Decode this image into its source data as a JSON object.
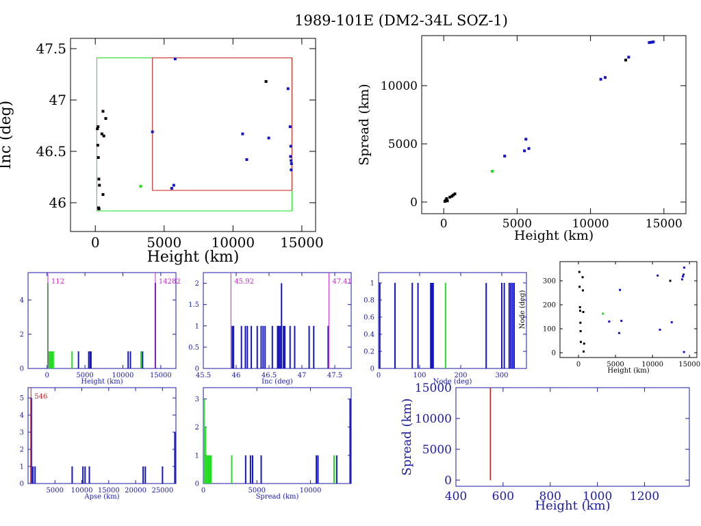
{
  "title": "1989-101E (DM2-34L SOZ-1)",
  "colors": {
    "axis": "#000000",
    "blue_axis": "#1a1aa6",
    "blue": "#1515c8",
    "green": "#22dd22",
    "red": "#c81e1e",
    "magenta": "#cc22cc",
    "black": "#000000"
  },
  "chart_data": [
    {
      "id": "inc-vs-height",
      "type": "scatter",
      "xlabel": "Height (km)",
      "ylabel": "Inc (deg)",
      "xlim": [
        -1800,
        16000
      ],
      "ylim": [
        45.72,
        47.6
      ],
      "xticks": [
        0,
        5000,
        10000,
        15000
      ],
      "yticks": [
        46,
        46.5,
        47,
        47.5
      ],
      "boxes": [
        {
          "color": "green",
          "x0": 112,
          "x1": 14282,
          "y0": 45.92,
          "y1": 47.41
        },
        {
          "color": "red",
          "x0": 4150,
          "x1": 14282,
          "y0": 46.12,
          "y1": 47.41
        }
      ],
      "points": [
        {
          "x": 200,
          "y": 46.74,
          "c": "black"
        },
        {
          "x": 150,
          "y": 46.72,
          "c": "black"
        },
        {
          "x": 180,
          "y": 46.56,
          "c": "black"
        },
        {
          "x": 220,
          "y": 46.44,
          "c": "black"
        },
        {
          "x": 260,
          "y": 46.23,
          "c": "black"
        },
        {
          "x": 300,
          "y": 46.17,
          "c": "black"
        },
        {
          "x": 240,
          "y": 45.95,
          "c": "black"
        },
        {
          "x": 270,
          "y": 45.94,
          "c": "black"
        },
        {
          "x": 560,
          "y": 46.89,
          "c": "black"
        },
        {
          "x": 760,
          "y": 46.82,
          "c": "black"
        },
        {
          "x": 480,
          "y": 46.67,
          "c": "black"
        },
        {
          "x": 620,
          "y": 46.65,
          "c": "black"
        },
        {
          "x": 560,
          "y": 46.08,
          "c": "black"
        },
        {
          "x": 3300,
          "y": 46.16,
          "c": "green"
        },
        {
          "x": 4150,
          "y": 46.69,
          "c": "blue"
        },
        {
          "x": 5550,
          "y": 46.14,
          "c": "blue"
        },
        {
          "x": 5700,
          "y": 46.17,
          "c": "blue"
        },
        {
          "x": 5800,
          "y": 47.4,
          "c": "blue"
        },
        {
          "x": 10700,
          "y": 46.67,
          "c": "blue"
        },
        {
          "x": 11000,
          "y": 46.42,
          "c": "blue"
        },
        {
          "x": 12400,
          "y": 47.18,
          "c": "black"
        },
        {
          "x": 12600,
          "y": 46.63,
          "c": "blue"
        },
        {
          "x": 14000,
          "y": 47.11,
          "c": "blue"
        },
        {
          "x": 14150,
          "y": 46.74,
          "c": "blue"
        },
        {
          "x": 14200,
          "y": 46.55,
          "c": "blue"
        },
        {
          "x": 14180,
          "y": 46.45,
          "c": "blue"
        },
        {
          "x": 14220,
          "y": 46.41,
          "c": "blue"
        },
        {
          "x": 14250,
          "y": 46.38,
          "c": "blue"
        },
        {
          "x": 14230,
          "y": 46.32,
          "c": "blue"
        }
      ]
    },
    {
      "id": "spread-vs-height",
      "type": "scatter",
      "xlabel": "Height (km)",
      "ylabel": "Spread (km)",
      "xlim": [
        -1500,
        16500
      ],
      "ylim": [
        -1000,
        14300
      ],
      "xticks": [
        0,
        5000,
        10000,
        15000
      ],
      "yticks": [
        0,
        5000,
        10000
      ],
      "points": [
        {
          "x": 80,
          "y": 60,
          "c": "black"
        },
        {
          "x": 150,
          "y": 180,
          "c": "black"
        },
        {
          "x": 200,
          "y": 300,
          "c": "black"
        },
        {
          "x": 250,
          "y": 100,
          "c": "black"
        },
        {
          "x": 420,
          "y": 420,
          "c": "black"
        },
        {
          "x": 560,
          "y": 500,
          "c": "black"
        },
        {
          "x": 650,
          "y": 600,
          "c": "black"
        },
        {
          "x": 760,
          "y": 700,
          "c": "black"
        },
        {
          "x": 3300,
          "y": 2650,
          "c": "green"
        },
        {
          "x": 4150,
          "y": 3950,
          "c": "blue"
        },
        {
          "x": 5500,
          "y": 4400,
          "c": "blue"
        },
        {
          "x": 5600,
          "y": 5400,
          "c": "blue"
        },
        {
          "x": 5800,
          "y": 4600,
          "c": "blue"
        },
        {
          "x": 10700,
          "y": 10550,
          "c": "blue"
        },
        {
          "x": 11000,
          "y": 10700,
          "c": "blue"
        },
        {
          "x": 12400,
          "y": 12200,
          "c": "black"
        },
        {
          "x": 12600,
          "y": 12450,
          "c": "blue"
        },
        {
          "x": 14000,
          "y": 13700,
          "c": "blue"
        },
        {
          "x": 14100,
          "y": 13720,
          "c": "blue"
        },
        {
          "x": 14200,
          "y": 13740,
          "c": "blue"
        },
        {
          "x": 14280,
          "y": 13760,
          "c": "blue"
        }
      ]
    },
    {
      "id": "height-hist",
      "type": "bar",
      "xlabel": "Height (km)",
      "xlim": [
        -2500,
        17000
      ],
      "ylim": [
        0,
        5.6
      ],
      "xticks": [
        0,
        5000,
        10000,
        15000
      ],
      "yticks": [
        0,
        2,
        4
      ],
      "markers": [
        {
          "x": 112,
          "label": "112"
        },
        {
          "x": 14282,
          "label": "14282"
        }
      ],
      "bars": [
        {
          "x": 112,
          "v": 5,
          "c": "green"
        },
        {
          "x": 250,
          "v": 1,
          "c": "green"
        },
        {
          "x": 420,
          "v": 1,
          "c": "green"
        },
        {
          "x": 560,
          "v": 1,
          "c": "green"
        },
        {
          "x": 700,
          "v": 1,
          "c": "green"
        },
        {
          "x": 820,
          "v": 1,
          "c": "green"
        },
        {
          "x": 3300,
          "v": 1,
          "c": "green"
        },
        {
          "x": 4150,
          "v": 1,
          "c": "blue"
        },
        {
          "x": 5500,
          "v": 1,
          "c": "blue"
        },
        {
          "x": 5700,
          "v": 1,
          "c": "blue"
        },
        {
          "x": 5800,
          "v": 1,
          "c": "blue"
        },
        {
          "x": 10700,
          "v": 1,
          "c": "blue"
        },
        {
          "x": 11000,
          "v": 1,
          "c": "blue"
        },
        {
          "x": 12400,
          "v": 1,
          "c": "green"
        },
        {
          "x": 12600,
          "v": 1,
          "c": "blue"
        },
        {
          "x": 14282,
          "v": 5,
          "c": "blue"
        }
      ]
    },
    {
      "id": "inc-hist",
      "type": "bar",
      "xlabel": "Inc (deg)",
      "xlim": [
        45.5,
        47.75
      ],
      "ylim": [
        0,
        2.25
      ],
      "xticks": [
        45.5,
        46,
        46.5,
        47,
        47.5
      ],
      "yticks": [
        0,
        0.5,
        1,
        1.5,
        2
      ],
      "markers": [
        {
          "x": 45.92,
          "label": "45.92"
        },
        {
          "x": 47.41,
          "label": "47.41"
        }
      ],
      "bars": [
        {
          "x": 45.94,
          "v": 1,
          "c": "blue"
        },
        {
          "x": 45.96,
          "v": 1,
          "c": "blue"
        },
        {
          "x": 46.08,
          "v": 1,
          "c": "blue"
        },
        {
          "x": 46.14,
          "v": 1,
          "c": "blue"
        },
        {
          "x": 46.17,
          "v": 1,
          "c": "blue"
        },
        {
          "x": 46.23,
          "v": 1,
          "c": "blue"
        },
        {
          "x": 46.32,
          "v": 1,
          "c": "blue"
        },
        {
          "x": 46.38,
          "v": 1,
          "c": "blue"
        },
        {
          "x": 46.41,
          "v": 1,
          "c": "blue"
        },
        {
          "x": 46.44,
          "v": 1,
          "c": "blue"
        },
        {
          "x": 46.55,
          "v": 1,
          "c": "blue"
        },
        {
          "x": 46.63,
          "v": 1,
          "c": "blue"
        },
        {
          "x": 46.65,
          "v": 1,
          "c": "blue"
        },
        {
          "x": 46.67,
          "v": 1,
          "c": "blue"
        },
        {
          "x": 46.69,
          "v": 2,
          "c": "blue"
        },
        {
          "x": 46.72,
          "v": 1,
          "c": "blue"
        },
        {
          "x": 46.74,
          "v": 1,
          "c": "blue"
        },
        {
          "x": 46.82,
          "v": 1,
          "c": "blue"
        },
        {
          "x": 46.89,
          "v": 1,
          "c": "blue"
        },
        {
          "x": 47.11,
          "v": 1,
          "c": "blue"
        },
        {
          "x": 47.18,
          "v": 1,
          "c": "blue"
        },
        {
          "x": 47.4,
          "v": 1,
          "c": "blue"
        }
      ]
    },
    {
      "id": "node-hist",
      "type": "bar",
      "xlabel": "Node (deg)",
      "xlim": [
        0,
        360
      ],
      "ylim": [
        0,
        1.12
      ],
      "xticks": [
        0,
        100,
        200,
        300
      ],
      "yticks": [
        0,
        0.2,
        0.4,
        0.6,
        0.8,
        1
      ],
      "bars": [
        {
          "x": 3,
          "v": 1,
          "c": "blue"
        },
        {
          "x": 40,
          "v": 1,
          "c": "blue"
        },
        {
          "x": 82,
          "v": 1,
          "c": "blue"
        },
        {
          "x": 96,
          "v": 1,
          "c": "blue"
        },
        {
          "x": 127,
          "v": 1,
          "c": "blue"
        },
        {
          "x": 130,
          "v": 1,
          "c": "blue"
        },
        {
          "x": 133,
          "v": 1,
          "c": "blue"
        },
        {
          "x": 163,
          "v": 1,
          "c": "green"
        },
        {
          "x": 262,
          "v": 1,
          "c": "blue"
        },
        {
          "x": 300,
          "v": 1,
          "c": "blue"
        },
        {
          "x": 306,
          "v": 1,
          "c": "blue"
        },
        {
          "x": 318,
          "v": 1,
          "c": "blue"
        },
        {
          "x": 322,
          "v": 1,
          "c": "blue"
        },
        {
          "x": 326,
          "v": 1,
          "c": "blue"
        },
        {
          "x": 330,
          "v": 1,
          "c": "blue"
        }
      ]
    },
    {
      "id": "node-vs-height",
      "type": "scatter",
      "xlabel": "Height (km)",
      "ylabel": "Node (deg)",
      "xlim": [
        -2500,
        16000
      ],
      "ylim": [
        -20,
        380
      ],
      "xticks": [
        0,
        5000,
        10000,
        15000
      ],
      "yticks": [
        0,
        100,
        200,
        300
      ],
      "points": [
        {
          "x": 120,
          "y": 337,
          "c": "black"
        },
        {
          "x": 150,
          "y": 275,
          "c": "black"
        },
        {
          "x": 200,
          "y": 190,
          "c": "black"
        },
        {
          "x": 230,
          "y": 175,
          "c": "black"
        },
        {
          "x": 260,
          "y": 125,
          "c": "black"
        },
        {
          "x": 290,
          "y": 90,
          "c": "black"
        },
        {
          "x": 320,
          "y": 45,
          "c": "black"
        },
        {
          "x": 560,
          "y": 315,
          "c": "black"
        },
        {
          "x": 600,
          "y": 260,
          "c": "black"
        },
        {
          "x": 650,
          "y": 170,
          "c": "black"
        },
        {
          "x": 700,
          "y": 5,
          "c": "black"
        },
        {
          "x": 760,
          "y": 38,
          "c": "black"
        },
        {
          "x": 3300,
          "y": 163,
          "c": "green"
        },
        {
          "x": 4150,
          "y": 130,
          "c": "blue"
        },
        {
          "x": 5500,
          "y": 82,
          "c": "blue"
        },
        {
          "x": 5600,
          "y": 262,
          "c": "blue"
        },
        {
          "x": 5800,
          "y": 133,
          "c": "blue"
        },
        {
          "x": 10700,
          "y": 322,
          "c": "blue"
        },
        {
          "x": 11000,
          "y": 96,
          "c": "blue"
        },
        {
          "x": 12400,
          "y": 300,
          "c": "black"
        },
        {
          "x": 12600,
          "y": 127,
          "c": "blue"
        },
        {
          "x": 14000,
          "y": 306,
          "c": "blue"
        },
        {
          "x": 14100,
          "y": 318,
          "c": "blue"
        },
        {
          "x": 14200,
          "y": 326,
          "c": "blue"
        },
        {
          "x": 14280,
          "y": 355,
          "c": "blue"
        },
        {
          "x": 14250,
          "y": 3,
          "c": "blue"
        }
      ]
    },
    {
      "id": "apse-hist",
      "type": "bar",
      "xlabel": "Apse (km)",
      "xlim": [
        0,
        27500
      ],
      "ylim": [
        0,
        5.6
      ],
      "xticks": [
        5000,
        10000,
        15000,
        20000,
        25000
      ],
      "yticks": [
        0,
        1,
        2,
        3,
        4,
        5
      ],
      "markers": [
        {
          "x": 546,
          "label": "546"
        }
      ],
      "bars": [
        {
          "x": 546,
          "v": 5,
          "c": "red"
        },
        {
          "x": 620,
          "v": 5,
          "c": "blue"
        },
        {
          "x": 900,
          "v": 1,
          "c": "blue"
        },
        {
          "x": 1300,
          "v": 1,
          "c": "blue"
        },
        {
          "x": 8200,
          "v": 1,
          "c": "blue"
        },
        {
          "x": 10200,
          "v": 1,
          "c": "blue"
        },
        {
          "x": 10600,
          "v": 1,
          "c": "blue"
        },
        {
          "x": 11400,
          "v": 1,
          "c": "blue"
        },
        {
          "x": 21400,
          "v": 1,
          "c": "blue"
        },
        {
          "x": 21800,
          "v": 1,
          "c": "blue"
        },
        {
          "x": 25000,
          "v": 1,
          "c": "blue"
        },
        {
          "x": 27300,
          "v": 3,
          "c": "blue"
        }
      ]
    },
    {
      "id": "spread-hist",
      "type": "bar",
      "xlabel": "Spread (km)",
      "xlim": [
        0,
        13800
      ],
      "ylim": [
        0,
        3.4
      ],
      "xticks": [
        0,
        5000,
        10000
      ],
      "yticks": [
        0,
        1,
        2,
        3
      ],
      "bars": [
        {
          "x": 60,
          "v": 3,
          "c": "green"
        },
        {
          "x": 180,
          "v": 2,
          "c": "green"
        },
        {
          "x": 300,
          "v": 1,
          "c": "green"
        },
        {
          "x": 420,
          "v": 1,
          "c": "green"
        },
        {
          "x": 500,
          "v": 1,
          "c": "green"
        },
        {
          "x": 600,
          "v": 1,
          "c": "green"
        },
        {
          "x": 700,
          "v": 1,
          "c": "green"
        },
        {
          "x": 2650,
          "v": 1,
          "c": "green"
        },
        {
          "x": 3950,
          "v": 1,
          "c": "blue"
        },
        {
          "x": 4400,
          "v": 1,
          "c": "blue"
        },
        {
          "x": 4600,
          "v": 1,
          "c": "blue"
        },
        {
          "x": 5400,
          "v": 1,
          "c": "blue"
        },
        {
          "x": 10550,
          "v": 1,
          "c": "blue"
        },
        {
          "x": 10700,
          "v": 1,
          "c": "blue"
        },
        {
          "x": 12200,
          "v": 1,
          "c": "green"
        },
        {
          "x": 12450,
          "v": 1,
          "c": "blue"
        },
        {
          "x": 13700,
          "v": 3,
          "c": "blue"
        }
      ]
    },
    {
      "id": "spread-vs-height-zoom",
      "type": "line",
      "xlabel": "Height (km)",
      "ylabel": "Spread (km)",
      "xlim": [
        400,
        1390
      ],
      "ylim": [
        -1000,
        15000
      ],
      "xticks": [
        400,
        600,
        800,
        1000,
        1200
      ],
      "yticks": [
        0,
        5000,
        10000,
        15000
      ],
      "vline": {
        "x": 546,
        "y0": 0,
        "y1": 15000,
        "c": "red"
      }
    }
  ]
}
